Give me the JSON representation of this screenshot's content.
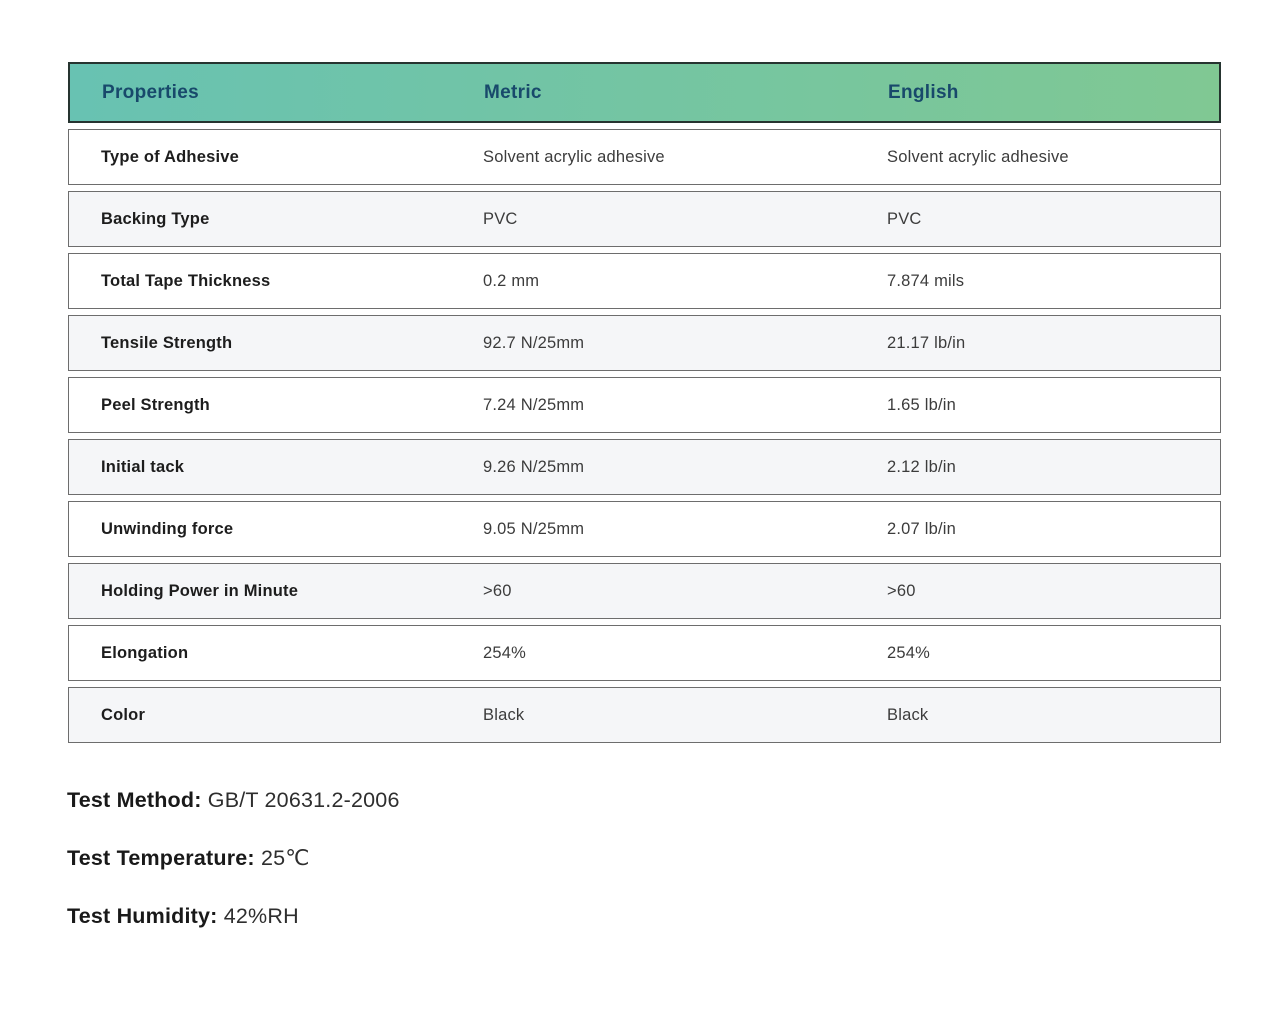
{
  "table": {
    "columns": [
      "Properties",
      "Metric",
      "English"
    ],
    "rows": [
      {
        "property": "Type of Adhesive",
        "metric": "Solvent acrylic adhesive",
        "english": "Solvent acrylic adhesive"
      },
      {
        "property": "Backing Type",
        "metric": "PVC",
        "english": "PVC"
      },
      {
        "property": "Total Tape Thickness",
        "metric": "0.2 mm",
        "english": "7.874 mils"
      },
      {
        "property": "Tensile Strength",
        "metric": "92.7 N/25mm",
        "english": "21.17 lb/in"
      },
      {
        "property": "Peel Strength",
        "metric": "7.24 N/25mm",
        "english": "1.65 lb/in"
      },
      {
        "property": "Initial tack",
        "metric": "9.26 N/25mm",
        "english": "2.12 lb/in"
      },
      {
        "property": "Unwinding force",
        "metric": "9.05 N/25mm",
        "english": "2.07 lb/in"
      },
      {
        "property": "Holding Power in Minute",
        "metric": ">60",
        "english": ">60"
      },
      {
        "property": "Elongation",
        "metric": "254%",
        "english": "254%"
      },
      {
        "property": "Color",
        "metric": "Black",
        "english": "Black"
      }
    ]
  },
  "notes": [
    {
      "label": "Test Method:",
      "value": "GB/T 20631.2-2006"
    },
    {
      "label": "Test Temperature:",
      "value": "25℃"
    },
    {
      "label": "Test Humidity:",
      "value": "42%RH"
    }
  ],
  "colors": {
    "header_gradient_start": "#68c2b2",
    "header_gradient_end": "#80c893",
    "header_text": "#18496b",
    "row_border": "#6d6d6d",
    "row_alt_background": "#f5f6f8"
  }
}
